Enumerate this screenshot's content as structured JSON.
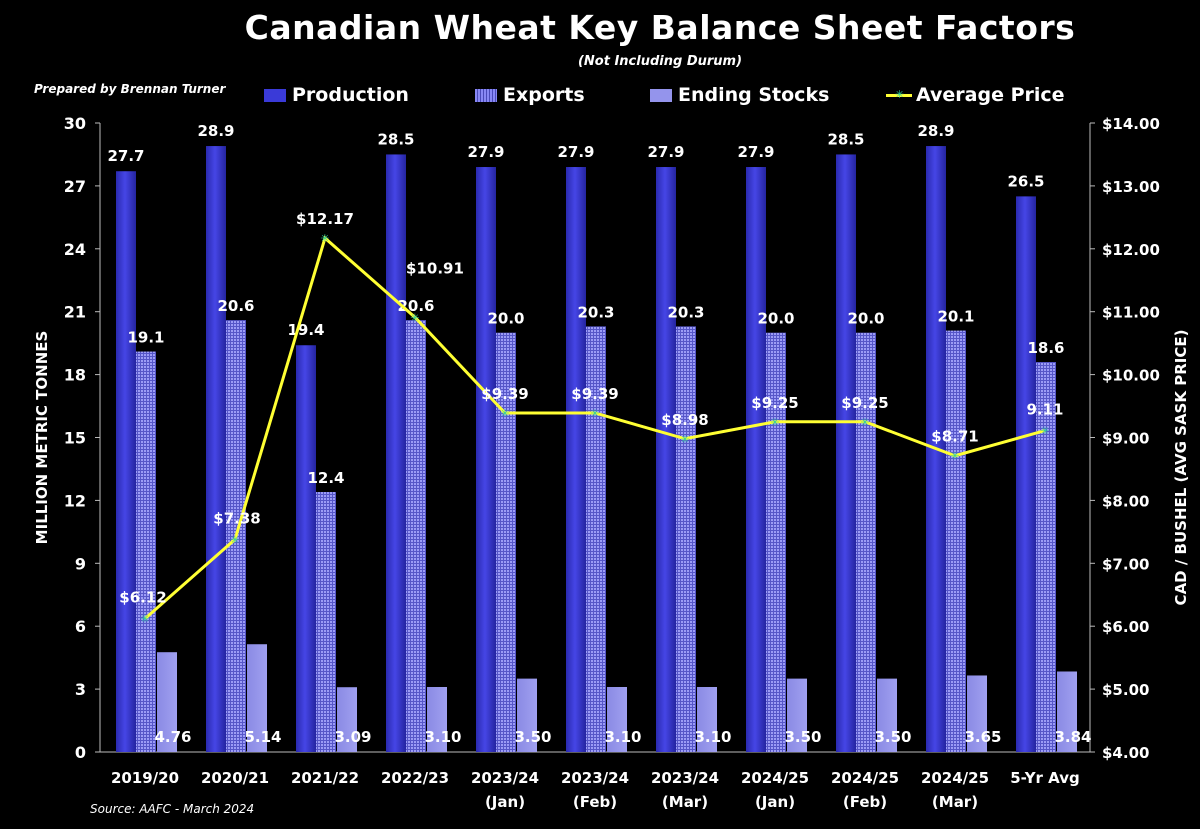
{
  "title": "Canadian Wheat Key Balance Sheet Factors",
  "subtitle": "(Not Including Durum)",
  "prepared_by": "Prepared by Brennan Turner",
  "source": "Source: AAFC -  March 2024",
  "legend": {
    "production": "Production",
    "exports": "Exports",
    "ending_stocks": "Ending Stocks",
    "average_price": "Average Price"
  },
  "colors": {
    "production": "#3a3ad8",
    "exports": "#8080f0",
    "ending_stocks": "#9494ec",
    "average_price": "#ffff33",
    "marker": "#2ad0a0",
    "background": "#000000"
  },
  "chart_data": {
    "type": "bar",
    "title": "Canadian Wheat Key Balance Sheet Factors",
    "subtitle": "(Not Including Durum)",
    "ylabel": "MILLION METRIC TONNES",
    "y2label": "CAD / BUSHEL (AVG SASK PRICE)",
    "ylim": [
      0,
      30
    ],
    "yticks": [
      "0",
      "3",
      "6",
      "9",
      "12",
      "15",
      "18",
      "21",
      "24",
      "27",
      "30"
    ],
    "y2lim": [
      4,
      14
    ],
    "y2ticks": [
      "$4.00",
      "$5.00",
      "$6.00",
      "$7.00",
      "$8.00",
      "$9.00",
      "$10.00",
      "$11.00",
      "$12.00",
      "$13.00",
      "$14.00"
    ],
    "categories": [
      [
        "2019/20",
        ""
      ],
      [
        "2020/21",
        ""
      ],
      [
        "2021/22",
        ""
      ],
      [
        "2022/23",
        ""
      ],
      [
        "2023/24",
        "(Jan)"
      ],
      [
        "2023/24",
        "(Feb)"
      ],
      [
        "2023/24",
        "(Mar)"
      ],
      [
        "2024/25",
        "(Jan)"
      ],
      [
        "2024/25",
        "(Feb)"
      ],
      [
        "2024/25",
        "(Mar)"
      ],
      [
        "5-Yr Avg",
        ""
      ]
    ],
    "series": [
      {
        "name": "Production",
        "type": "bar",
        "axis": "left",
        "values": [
          27.7,
          28.9,
          19.4,
          28.5,
          27.9,
          27.9,
          27.9,
          27.9,
          28.5,
          28.9,
          26.5
        ],
        "labels": [
          "27.7",
          "28.9",
          "19.4",
          "28.5",
          "27.9",
          "27.9",
          "27.9",
          "27.9",
          "28.5",
          "28.9",
          "26.5"
        ]
      },
      {
        "name": "Exports",
        "type": "bar",
        "axis": "left",
        "values": [
          19.1,
          20.6,
          12.4,
          20.6,
          20.0,
          20.3,
          20.3,
          20.0,
          20.0,
          20.1,
          18.6
        ],
        "labels": [
          "19.1",
          "20.6",
          "12.4",
          "20.6",
          "20.0",
          "20.3",
          "20.3",
          "20.0",
          "20.0",
          "20.1",
          "18.6"
        ]
      },
      {
        "name": "Ending Stocks",
        "type": "bar",
        "axis": "left",
        "values": [
          4.76,
          5.14,
          3.09,
          3.1,
          3.5,
          3.1,
          3.1,
          3.5,
          3.5,
          3.65,
          3.84
        ],
        "labels": [
          "4.76",
          "5.14",
          "3.09",
          "3.10",
          "3.50",
          "3.10",
          "3.10",
          "3.50",
          "3.50",
          "3.65",
          "3.84"
        ]
      },
      {
        "name": "Average Price",
        "type": "line",
        "axis": "right",
        "values": [
          6.12,
          7.38,
          12.17,
          10.91,
          9.39,
          9.39,
          8.98,
          9.25,
          9.25,
          8.71,
          9.11
        ],
        "labels": [
          "$6.12",
          "$7.38",
          "$12.17",
          "$10.91",
          "$9.39",
          "$9.39",
          "$8.98",
          "$9.25",
          "$9.25",
          "$8.71",
          "9.11"
        ]
      }
    ],
    "legend_position": "top",
    "grid": false
  }
}
